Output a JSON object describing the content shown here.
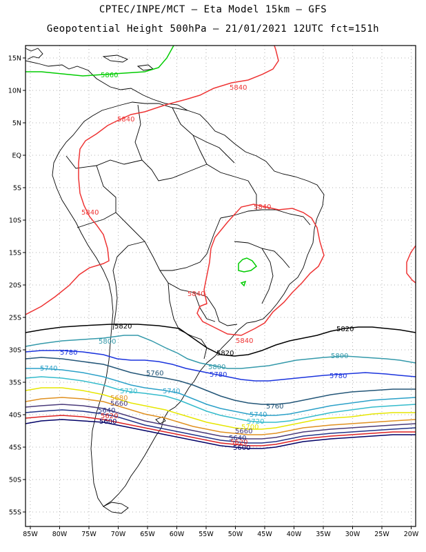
{
  "header": {
    "line1": "CPTEC/INPE/MCT –  Eta Model 15km – GFS",
    "line2": "Geopotential Height 500hPa – 21/01/2021 12UTC fct=151h"
  },
  "axes": {
    "lat_labels": [
      "15N",
      "10N",
      "5N",
      "EQ",
      "5S",
      "10S",
      "15S",
      "20S",
      "25S",
      "30S",
      "35S",
      "40S",
      "45S",
      "50S",
      "55S"
    ],
    "lon_labels": [
      "85W",
      "80W",
      "75W",
      "70W",
      "65W",
      "60W",
      "55W",
      "50W",
      "45W",
      "40W",
      "35W",
      "30W",
      "25W",
      "20W"
    ]
  },
  "contours": [
    {
      "value": "5860",
      "color": "#00cc00",
      "label": "5860"
    },
    {
      "value": "5840",
      "color": "#ee3333",
      "label": "5840"
    },
    {
      "value": "5820",
      "color": "#000000",
      "label": "5820"
    },
    {
      "value": "5800",
      "color": "#3399aa",
      "label": "5800"
    },
    {
      "value": "5780",
      "color": "#1a33dd",
      "label": "5780"
    },
    {
      "value": "5760",
      "color": "#225577",
      "label": "5760"
    },
    {
      "value": "5740",
      "color": "#2aa0c8",
      "label": "5740"
    },
    {
      "value": "5720",
      "color": "#33bbcc",
      "label": "5720"
    },
    {
      "value": "5700",
      "color": "#e6e600",
      "label": "5700"
    },
    {
      "value": "5680",
      "color": "#e09020",
      "label": "5680"
    },
    {
      "value": "5660",
      "color": "#4a3a7a",
      "label": "5660"
    },
    {
      "value": "5640",
      "color": "#223388",
      "label": "5640"
    },
    {
      "value": "5620",
      "color": "#dd2222",
      "label": "5620"
    },
    {
      "value": "5600",
      "color": "#000066",
      "label": "5600"
    }
  ]
}
